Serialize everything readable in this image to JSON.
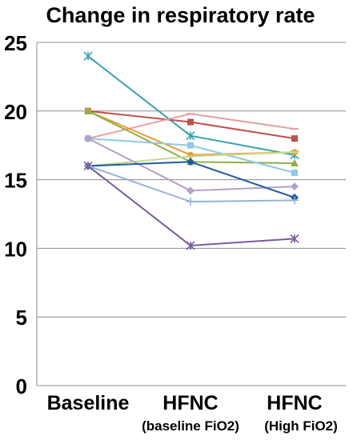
{
  "chart_data": {
    "type": "line",
    "title": "Change in respiratory rate",
    "xlabel": "",
    "ylabel": "",
    "categories": [
      "Baseline",
      "HFNC",
      "HFNC"
    ],
    "category_sublabels": [
      "",
      "(baseline FiO2)",
      "(High FiO2)"
    ],
    "ylim": [
      0,
      25
    ],
    "yticks": [
      0,
      5,
      10,
      15,
      20,
      25
    ],
    "grid": true,
    "legend": "none",
    "series": [
      {
        "values": [
          24,
          18.2,
          16.8
        ],
        "color": "#3aa0b0",
        "marker": "x"
      },
      {
        "values": [
          20,
          19.2,
          18
        ],
        "color": "#c0504d",
        "marker": "square"
      },
      {
        "values": [
          18,
          19.8,
          18.7
        ],
        "color": "#e6a0a0",
        "marker": "line"
      },
      {
        "values": [
          20,
          16.8,
          17
        ],
        "color": "#f09a35",
        "marker": "circle"
      },
      {
        "values": [
          20,
          16.3,
          16.2
        ],
        "color": "#8faf4a",
        "marker": "triangle"
      },
      {
        "values": [
          18,
          17.5,
          15.5
        ],
        "color": "#8fc9e8",
        "marker": "square"
      },
      {
        "values": [
          16,
          16.7,
          17
        ],
        "color": "#c2dc8c",
        "marker": "line"
      },
      {
        "values": [
          18,
          14.2,
          14.5
        ],
        "color": "#b4a0c8",
        "marker": "diamond"
      },
      {
        "values": [
          16,
          16.3,
          13.7
        ],
        "color": "#1f5aa0",
        "marker": "diamond"
      },
      {
        "values": [
          16,
          13.4,
          13.5
        ],
        "color": "#95b3d7",
        "marker": "plus"
      },
      {
        "values": [
          16,
          10.2,
          10.7
        ],
        "color": "#7a5ca0",
        "marker": "x"
      }
    ]
  }
}
